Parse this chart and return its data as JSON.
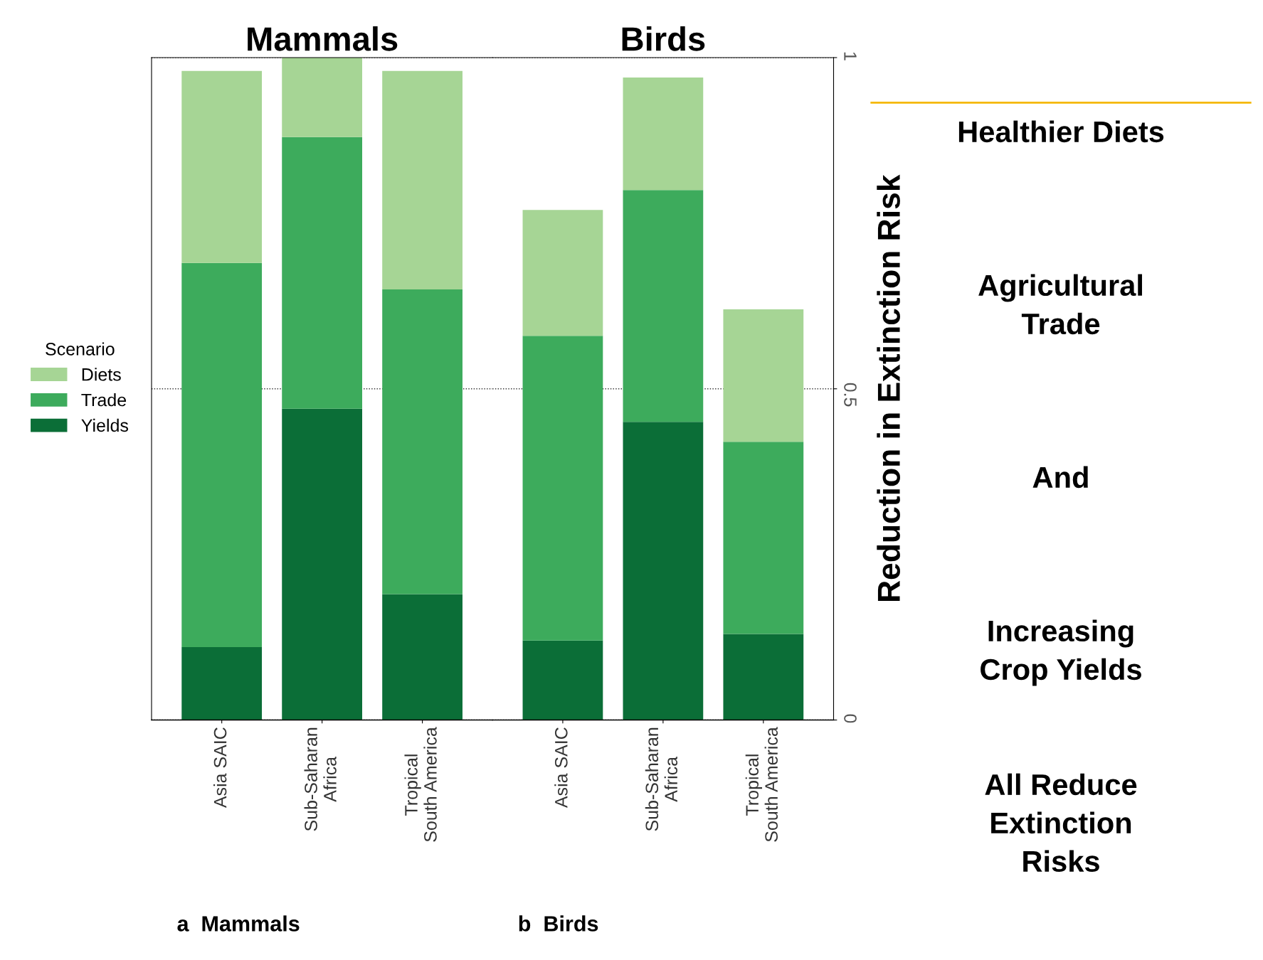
{
  "chart_data": [
    {
      "type": "bar",
      "stacked": true,
      "title": "Mammals",
      "categories": [
        "Asia SAIC",
        "Sub-Saharan\nAfrica",
        "Tropical\nSouth America"
      ],
      "legend_title": "Scenario",
      "legend": "left",
      "grid": "y",
      "tick_labels": "x",
      "ylim": [
        0,
        1
      ],
      "yticks": [
        0,
        0.5,
        1
      ],
      "annotations": [
        "a  Mammals"
      ],
      "series": [
        {
          "name": "Yields",
          "color": "#0b6e37",
          "values": [
            0.11,
            0.47,
            0.19
          ]
        },
        {
          "name": "Trade",
          "color": "#3dab5c",
          "values": [
            0.58,
            0.41,
            0.46
          ]
        },
        {
          "name": "Diets",
          "color": "#a6d595",
          "values": [
            0.29,
            0.12,
            0.33
          ]
        }
      ]
    },
    {
      "type": "bar",
      "stacked": true,
      "title": "Birds",
      "categories": [
        "Asia SAIC",
        "Sub-Saharan\nAfrica",
        "Tropical\nSouth America"
      ],
      "ylabel": "Reduction in Extinction Risk",
      "grid": "y",
      "ylim": [
        0,
        1
      ],
      "yticks": [
        0,
        0.5,
        1
      ],
      "annotations": [
        "b  Birds",
        "Healthier Diets",
        "Agricultural\nTrade",
        "And",
        "Increasing\nCrop Yields",
        "All Reduce\nExtinction\nRisks"
      ],
      "series": [
        {
          "color": "#0b6e37",
          "values": [
            0.12,
            0.45,
            0.13
          ]
        },
        {
          "color": "#3dab5c",
          "values": [
            0.46,
            0.35,
            0.29
          ]
        },
        {
          "color": "#a6d595",
          "values": [
            0.19,
            0.17,
            0.2
          ]
        }
      ]
    }
  ]
}
